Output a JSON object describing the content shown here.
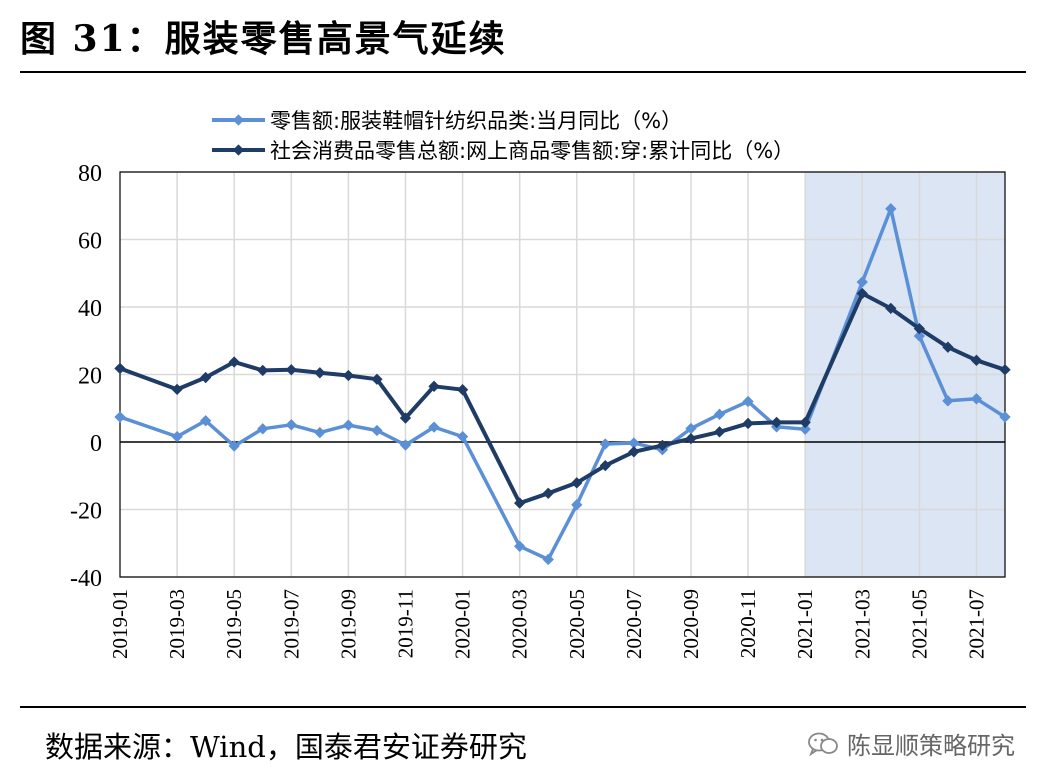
{
  "header": {
    "title": "图 31：服装零售高景气延续"
  },
  "footer": {
    "source": "数据来源：Wind，国泰君安证券研究",
    "watermark": "陈显顺策略研究"
  },
  "chart_data": {
    "type": "line",
    "title": "",
    "xlabel": "",
    "ylabel": "",
    "ylim": [
      -40,
      80
    ],
    "yticks": [
      80,
      60,
      40,
      20,
      0,
      -20,
      -40
    ],
    "grid": true,
    "legend_position": "top",
    "highlight_range": [
      "2021-01",
      "2021-08"
    ],
    "highlight_color": "#dbe5f4",
    "x": [
      "2019-01",
      "2019-02",
      "2019-03",
      "2019-04",
      "2019-05",
      "2019-06",
      "2019-07",
      "2019-08",
      "2019-09",
      "2019-10",
      "2019-11",
      "2019-12",
      "2020-01",
      "2020-02",
      "2020-03",
      "2020-04",
      "2020-05",
      "2020-06",
      "2020-07",
      "2020-08",
      "2020-09",
      "2020-10",
      "2020-11",
      "2020-12",
      "2021-01",
      "2021-02",
      "2021-03",
      "2021-04",
      "2021-05",
      "2021-06",
      "2021-07",
      "2021-08"
    ],
    "xtick_labels": [
      "2019-01",
      "2019-03",
      "2019-05",
      "2019-07",
      "2019-09",
      "2019-11",
      "2020-01",
      "2020-03",
      "2020-05",
      "2020-07",
      "2020-09",
      "2020-11",
      "2021-01",
      "2021-03",
      "2021-05",
      "2021-07"
    ],
    "series": [
      {
        "name": "零售额:服装鞋帽针纺织品类:当月同比（%）",
        "color": "#5b8fd6",
        "values": [
          7.4,
          null,
          1.6,
          6.3,
          -1.2,
          3.9,
          5.1,
          2.8,
          5.0,
          3.4,
          -0.9,
          4.4,
          1.6,
          null,
          -30.9,
          -34.8,
          -18.6,
          -0.6,
          -0.3,
          -2.3,
          4.0,
          8.2,
          12.0,
          4.5,
          3.8,
          null,
          47.4,
          69.1,
          31.4,
          12.2,
          12.8,
          7.4
        ]
      },
      {
        "name": "社会消费品零售总额:网上商品零售额:穿:累计同比（%）",
        "color": "#1f3c66",
        "values": [
          21.8,
          null,
          15.6,
          19.1,
          23.7,
          21.2,
          21.4,
          20.5,
          19.7,
          18.6,
          7.1,
          16.5,
          15.5,
          null,
          -18.1,
          -15.2,
          -12.1,
          -7.0,
          -2.9,
          -1.0,
          1.0,
          3.0,
          5.5,
          5.8,
          5.8,
          null,
          44.0,
          39.6,
          33.6,
          28.1,
          24.2,
          21.4
        ]
      }
    ]
  }
}
